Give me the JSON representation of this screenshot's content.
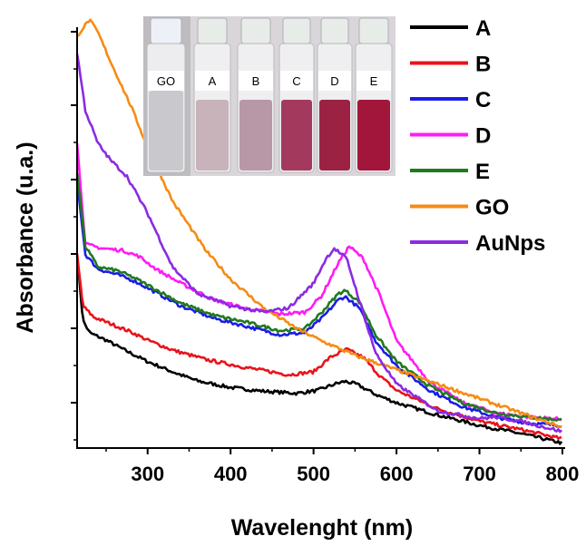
{
  "chart_data": {
    "type": "line",
    "title": "",
    "xlabel": "Wavelenght (nm)",
    "ylabel": "Absorbance (u.a.)",
    "xlim": [
      215,
      800
    ],
    "ylim": [
      0,
      1
    ],
    "x_ticks": [
      300,
      400,
      500,
      600,
      700,
      800
    ],
    "y_tick_labels_shown": false,
    "grid": false,
    "legend_position": "top-right",
    "series": [
      {
        "name": "A",
        "color": "#000000",
        "points": [
          [
            215,
            0.47
          ],
          [
            222,
            0.31
          ],
          [
            230,
            0.28
          ],
          [
            250,
            0.262
          ],
          [
            275,
            0.235
          ],
          [
            300,
            0.21
          ],
          [
            330,
            0.185
          ],
          [
            360,
            0.163
          ],
          [
            400,
            0.147
          ],
          [
            440,
            0.138
          ],
          [
            480,
            0.133
          ],
          [
            505,
            0.14
          ],
          [
            525,
            0.155
          ],
          [
            538,
            0.162
          ],
          [
            552,
            0.155
          ],
          [
            575,
            0.13
          ],
          [
            600,
            0.11
          ],
          [
            650,
            0.08
          ],
          [
            700,
            0.055
          ],
          [
            750,
            0.035
          ],
          [
            800,
            0.012
          ]
        ]
      },
      {
        "name": "B",
        "color": "#e8141b",
        "points": [
          [
            215,
            0.47
          ],
          [
            222,
            0.345
          ],
          [
            235,
            0.318
          ],
          [
            260,
            0.298
          ],
          [
            280,
            0.282
          ],
          [
            300,
            0.262
          ],
          [
            330,
            0.238
          ],
          [
            370,
            0.215
          ],
          [
            420,
            0.195
          ],
          [
            470,
            0.178
          ],
          [
            500,
            0.185
          ],
          [
            520,
            0.22
          ],
          [
            540,
            0.24
          ],
          [
            560,
            0.22
          ],
          [
            580,
            0.175
          ],
          [
            600,
            0.14
          ],
          [
            650,
            0.095
          ],
          [
            700,
            0.065
          ],
          [
            750,
            0.045
          ],
          [
            800,
            0.022
          ]
        ]
      },
      {
        "name": "C",
        "color": "#1c1ce6",
        "points": [
          [
            215,
            0.65
          ],
          [
            225,
            0.47
          ],
          [
            240,
            0.435
          ],
          [
            265,
            0.42
          ],
          [
            285,
            0.405
          ],
          [
            310,
            0.378
          ],
          [
            340,
            0.345
          ],
          [
            380,
            0.315
          ],
          [
            420,
            0.295
          ],
          [
            460,
            0.275
          ],
          [
            490,
            0.28
          ],
          [
            510,
            0.315
          ],
          [
            530,
            0.36
          ],
          [
            538,
            0.368
          ],
          [
            555,
            0.34
          ],
          [
            575,
            0.26
          ],
          [
            600,
            0.2
          ],
          [
            640,
            0.14
          ],
          [
            680,
            0.1
          ],
          [
            720,
            0.075
          ],
          [
            760,
            0.06
          ],
          [
            800,
            0.055
          ]
        ]
      },
      {
        "name": "D",
        "color": "#ff1bf4",
        "points": [
          [
            215,
            0.74
          ],
          [
            225,
            0.495
          ],
          [
            245,
            0.485
          ],
          [
            270,
            0.48
          ],
          [
            290,
            0.465
          ],
          [
            310,
            0.435
          ],
          [
            340,
            0.4
          ],
          [
            380,
            0.36
          ],
          [
            420,
            0.338
          ],
          [
            460,
            0.325
          ],
          [
            490,
            0.33
          ],
          [
            510,
            0.37
          ],
          [
            530,
            0.45
          ],
          [
            543,
            0.49
          ],
          [
            560,
            0.46
          ],
          [
            580,
            0.37
          ],
          [
            600,
            0.26
          ],
          [
            640,
            0.16
          ],
          [
            680,
            0.11
          ],
          [
            720,
            0.085
          ],
          [
            760,
            0.075
          ],
          [
            800,
            0.07
          ]
        ]
      },
      {
        "name": "E",
        "color": "#207a1e",
        "points": [
          [
            215,
            0.67
          ],
          [
            225,
            0.49
          ],
          [
            240,
            0.44
          ],
          [
            265,
            0.43
          ],
          [
            285,
            0.412
          ],
          [
            310,
            0.385
          ],
          [
            340,
            0.352
          ],
          [
            380,
            0.322
          ],
          [
            420,
            0.305
          ],
          [
            460,
            0.285
          ],
          [
            490,
            0.29
          ],
          [
            510,
            0.33
          ],
          [
            530,
            0.375
          ],
          [
            538,
            0.383
          ],
          [
            555,
            0.355
          ],
          [
            575,
            0.275
          ],
          [
            600,
            0.21
          ],
          [
            640,
            0.15
          ],
          [
            680,
            0.11
          ],
          [
            720,
            0.085
          ],
          [
            760,
            0.075
          ],
          [
            800,
            0.068
          ]
        ]
      },
      {
        "name": "GO",
        "color": "#f58c14",
        "points": [
          [
            215,
            1.0
          ],
          [
            222,
            1.02
          ],
          [
            230,
            1.04
          ],
          [
            240,
            1.01
          ],
          [
            255,
            0.94
          ],
          [
            280,
            0.83
          ],
          [
            300,
            0.73
          ],
          [
            330,
            0.6
          ],
          [
            370,
            0.48
          ],
          [
            400,
            0.41
          ],
          [
            440,
            0.34
          ],
          [
            480,
            0.29
          ],
          [
            510,
            0.26
          ],
          [
            550,
            0.225
          ],
          [
            600,
            0.19
          ],
          [
            650,
            0.155
          ],
          [
            700,
            0.12
          ],
          [
            750,
            0.085
          ],
          [
            800,
            0.05
          ]
        ]
      },
      {
        "name": "AuNps",
        "color": "#8b2be2",
        "points": [
          [
            215,
            0.96
          ],
          [
            225,
            0.82
          ],
          [
            240,
            0.74
          ],
          [
            255,
            0.7
          ],
          [
            275,
            0.66
          ],
          [
            300,
            0.57
          ],
          [
            330,
            0.44
          ],
          [
            360,
            0.375
          ],
          [
            400,
            0.345
          ],
          [
            440,
            0.33
          ],
          [
            470,
            0.34
          ],
          [
            500,
            0.4
          ],
          [
            515,
            0.46
          ],
          [
            525,
            0.485
          ],
          [
            540,
            0.46
          ],
          [
            555,
            0.36
          ],
          [
            575,
            0.23
          ],
          [
            600,
            0.155
          ],
          [
            650,
            0.09
          ],
          [
            700,
            0.072
          ],
          [
            720,
            0.075
          ],
          [
            750,
            0.065
          ],
          [
            800,
            0.04
          ]
        ]
      }
    ]
  },
  "inset": {
    "vials": [
      {
        "label": "GO",
        "liquid": "#c9c9cd",
        "cap": "#eef0f8"
      },
      {
        "label": "A",
        "liquid": "#c7b3b9",
        "cap": "#e8ece8"
      },
      {
        "label": "B",
        "liquid": "#b897a6",
        "cap": "#e8ece8"
      },
      {
        "label": "C",
        "liquid": "#a33a5e",
        "cap": "#e8ece8"
      },
      {
        "label": "D",
        "liquid": "#9c2243",
        "cap": "#e8ece8"
      },
      {
        "label": "E",
        "liquid": "#a1163a",
        "cap": "#e8ece8"
      }
    ]
  }
}
